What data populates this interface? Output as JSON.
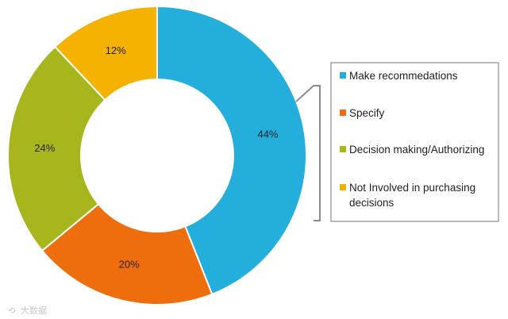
{
  "chart_data": {
    "type": "pie",
    "style": "donut",
    "categories": [
      "Make recommedations",
      "Specify",
      "Decision making/Authorizing",
      "Not Involved in purchasing decisions"
    ],
    "values": [
      44,
      20,
      24,
      12
    ],
    "labels": [
      "44%",
      "20%",
      "24%",
      "12%"
    ],
    "colors": [
      "#23aedb",
      "#ee6d0c",
      "#a7b61c",
      "#f5b200"
    ],
    "legend_position": "right",
    "legend_lines": [
      [
        "Make recommedations"
      ],
      [
        "Specify"
      ],
      [
        "Decision making/Authorizing"
      ],
      [
        "Not Involved in purchasing",
        "decisions"
      ]
    ]
  },
  "watermark": "大数据"
}
